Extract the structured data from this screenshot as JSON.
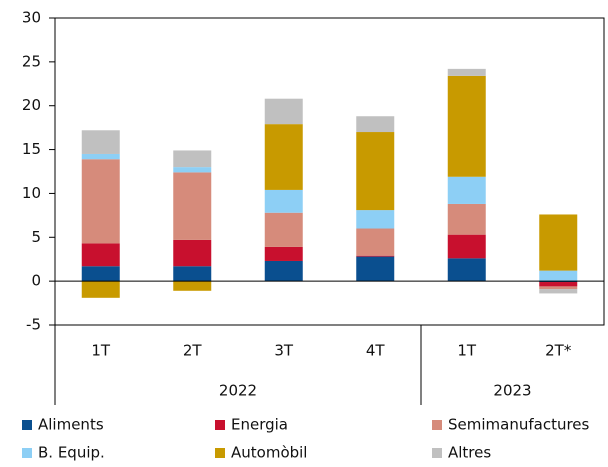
{
  "chart_data": {
    "type": "stacked_bar",
    "categories": [
      "1T",
      "2T",
      "3T",
      "4T",
      "1T",
      "2T*"
    ],
    "groups": [
      "2022",
      "2022",
      "2022",
      "2022",
      "2023",
      "2023"
    ],
    "series": [
      {
        "name": "Aliments",
        "color": "#0a4f8f",
        "values": [
          1.7,
          1.7,
          2.3,
          2.8,
          2.6,
          -0.1
        ]
      },
      {
        "name": "Energia",
        "color": "#c8102e",
        "values": [
          2.6,
          3.0,
          1.6,
          0.1,
          2.7,
          -0.5
        ]
      },
      {
        "name": "Semimanufactures",
        "color": "#d68b7b",
        "values": [
          9.6,
          7.7,
          3.9,
          3.1,
          3.5,
          -0.3
        ]
      },
      {
        "name": "B. Equip.",
        "color": "#8dcff5",
        "values": [
          0.6,
          0.6,
          2.6,
          2.1,
          3.1,
          1.2
        ]
      },
      {
        "name": "Automòbil",
        "color": "#c89a00",
        "values": [
          -1.9,
          -1.1,
          7.5,
          8.9,
          11.5,
          6.4
        ]
      },
      {
        "name": "Altres",
        "color": "#c0c0c0",
        "values": [
          2.7,
          1.9,
          2.9,
          1.8,
          0.8,
          -0.5
        ]
      }
    ],
    "ylim": [
      -5,
      30
    ],
    "yticks": [
      -5,
      0,
      5,
      10,
      15,
      20,
      25,
      30
    ]
  }
}
